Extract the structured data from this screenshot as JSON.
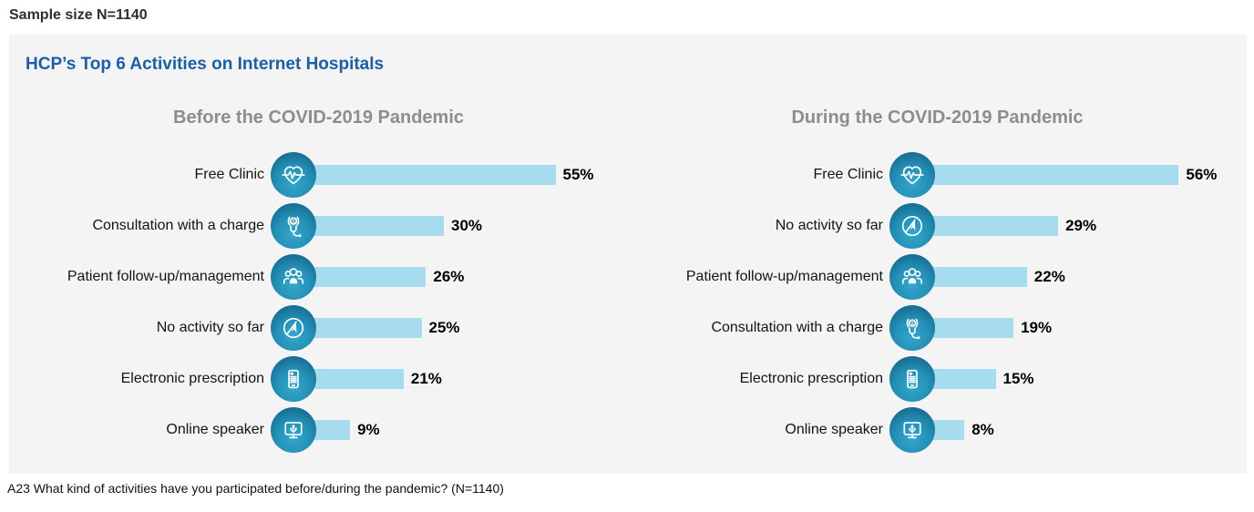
{
  "page": {
    "sample_size_label": "Sample size N=1140",
    "footnote": "A23 What kind of activities have you participated before/during the pandemic? (N=1140)"
  },
  "panel": {
    "title": "HCP’s Top 6 Activities on Internet Hospitals"
  },
  "colors": {
    "bar": "#a7dbee",
    "icon_dark": "#176d92",
    "icon_light": "#35a6cc",
    "title_blue": "#1b5ea6",
    "header_gray": "#8d8d90",
    "panel_bg": "#f4f4f5"
  },
  "chart_data": [
    {
      "type": "bar",
      "orientation": "horizontal",
      "title": "Before the COVID-2019 Pandemic",
      "unit": "%",
      "xlim": [
        0,
        60
      ],
      "categories": [
        "Free Clinic",
        "Consultation with a charge",
        "Patient follow-up/management",
        "No activity so far",
        "Electronic prescription",
        "Online speaker"
      ],
      "values": [
        55,
        30,
        26,
        25,
        21,
        9
      ],
      "value_labels": [
        "55%",
        "30%",
        "26%",
        "25%",
        "21%",
        "9%"
      ],
      "icons": [
        "heartbeat-icon",
        "stethoscope-dollar-icon",
        "people-group-icon",
        "paper-plane-icon",
        "phone-prescription-icon",
        "monitor-mic-icon"
      ]
    },
    {
      "type": "bar",
      "orientation": "horizontal",
      "title": "During the COVID-2019 Pandemic",
      "unit": "%",
      "xlim": [
        0,
        60
      ],
      "categories": [
        "Free Clinic",
        "No activity so far",
        "Patient follow-up/management",
        "Consultation with a charge",
        "Electronic prescription",
        "Online speaker"
      ],
      "values": [
        56,
        29,
        22,
        19,
        15,
        8
      ],
      "value_labels": [
        "56%",
        "29%",
        "22%",
        "19%",
        "15%",
        "8%"
      ],
      "icons": [
        "heartbeat-icon",
        "paper-plane-icon",
        "people-group-icon",
        "stethoscope-dollar-icon",
        "phone-prescription-icon",
        "monitor-mic-icon"
      ]
    }
  ]
}
